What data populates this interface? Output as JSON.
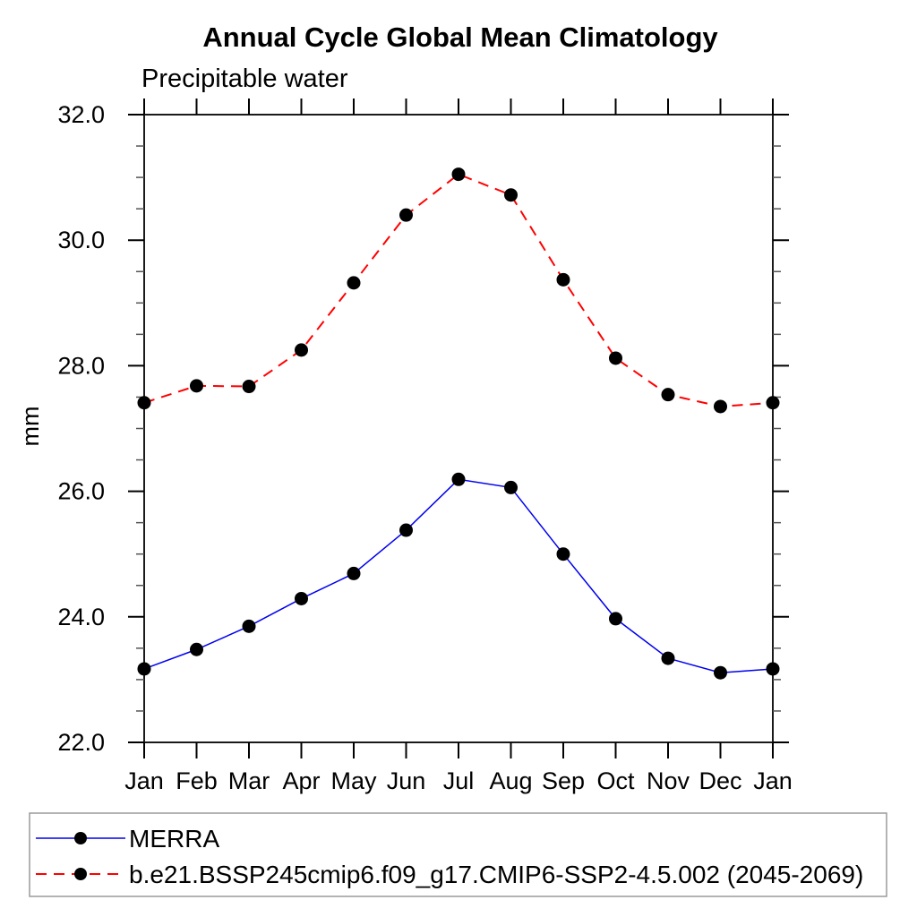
{
  "title": "Annual Cycle Global Mean Climatology",
  "subtitle": "Precipitable water",
  "ylabel": "mm",
  "chart_data": {
    "type": "line",
    "categories": [
      "Jan",
      "Feb",
      "Mar",
      "Apr",
      "May",
      "Jun",
      "Jul",
      "Aug",
      "Sep",
      "Oct",
      "Nov",
      "Dec",
      "Jan"
    ],
    "series": [
      {
        "name": "MERRA",
        "color": "#0000ee",
        "style": "solid",
        "line_width": 1.5,
        "marker_color": "#000000",
        "values": [
          23.17,
          23.48,
          23.85,
          24.29,
          24.69,
          25.38,
          26.19,
          26.06,
          25.0,
          23.97,
          23.34,
          23.11,
          23.17
        ]
      },
      {
        "name": "b.e21.BSSP245cmip6.f09_g17.CMIP6-SSP2-4.5.002 (2045-2069)",
        "color": "#ff0000",
        "style": "dashed",
        "line_width": 2,
        "marker_color": "#000000",
        "values": [
          27.41,
          27.68,
          27.67,
          28.25,
          29.32,
          30.4,
          31.05,
          30.72,
          29.37,
          28.12,
          27.54,
          27.35,
          27.41
        ]
      }
    ],
    "ylim": [
      22.0,
      32.0
    ],
    "ytick_major_step": 2.0,
    "ytick_minor_step": 0.5,
    "ytick_labels": [
      "22.0",
      "24.0",
      "26.0",
      "28.0",
      "30.0",
      "32.0"
    ],
    "grid": false,
    "legend_position": "bottom"
  }
}
